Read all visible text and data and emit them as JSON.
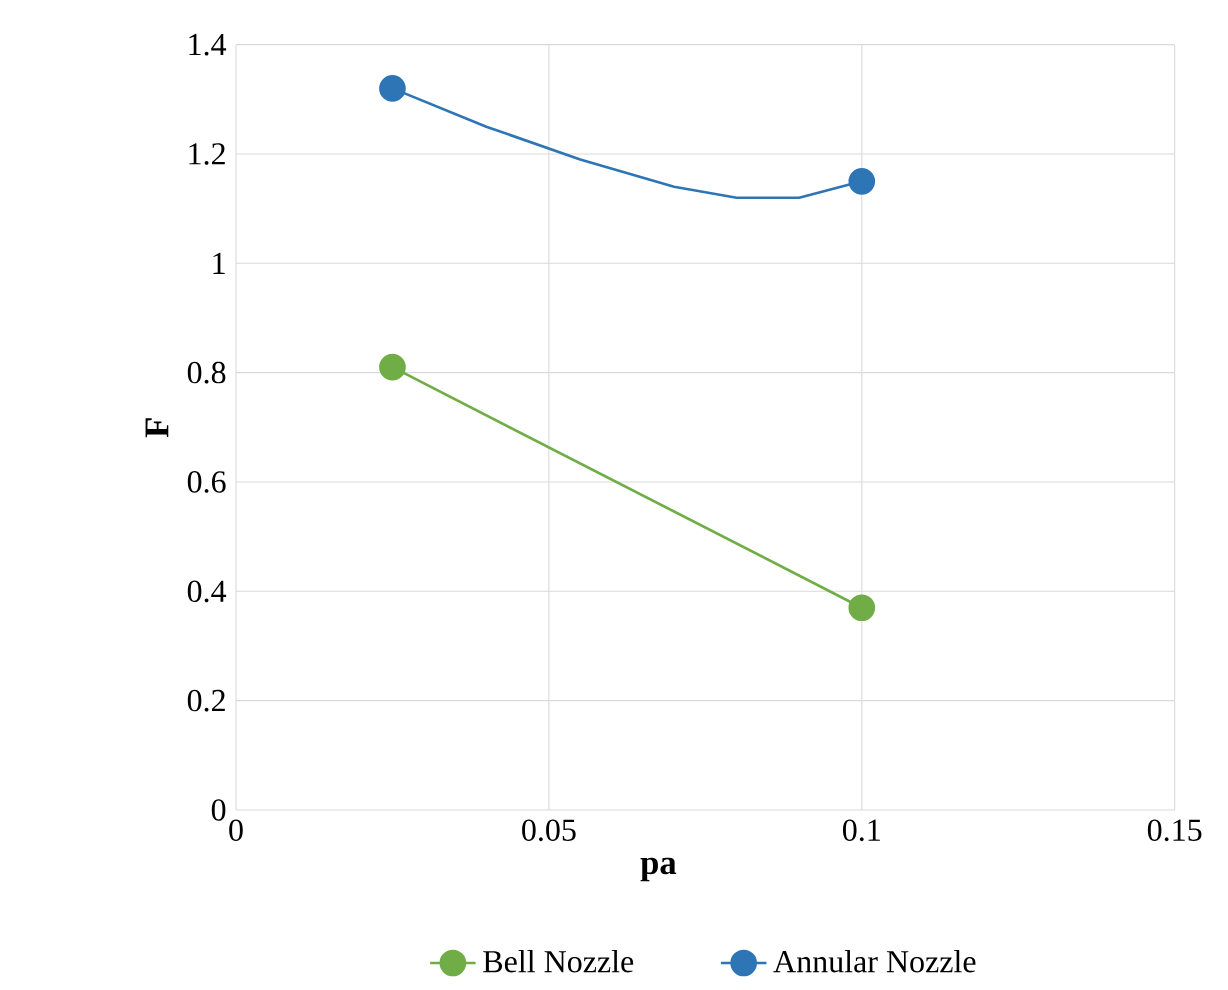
{
  "chart_data": {
    "type": "line",
    "xlabel": "pa",
    "ylabel": "F",
    "xlim": [
      0,
      0.15
    ],
    "xticks": [
      0,
      0.05,
      0.1,
      0.15
    ],
    "ylim": [
      0,
      1.4
    ],
    "yticks": [
      0,
      0.2,
      0.4,
      0.6,
      0.8,
      1,
      1.2,
      1.4
    ],
    "grid": true,
    "legend": "bottom",
    "series": [
      {
        "name": "Bell Nozzle",
        "color": "#70ad47",
        "marker": "circle",
        "x": [
          0.025,
          0.1
        ],
        "values": [
          0.81,
          0.37
        ]
      },
      {
        "color": "#2e75b6",
        "marker": "none",
        "x": [
          0.025,
          0.04,
          0.055,
          0.07,
          0.08,
          0.09,
          0.1
        ],
        "values": [
          1.32,
          1.25,
          1.19,
          1.14,
          1.12,
          1.12,
          1.15
        ]
      },
      {
        "name": "Annular Nozzle",
        "color": "#2e75b6",
        "type": "scatter",
        "marker": "circle",
        "x": [
          0.025,
          0.1
        ],
        "values": [
          1.32,
          1.15
        ]
      }
    ]
  }
}
